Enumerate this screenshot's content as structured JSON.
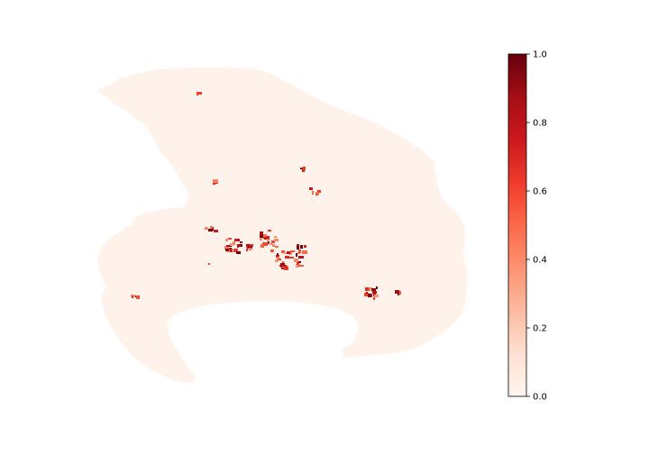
{
  "chart_data": {
    "type": "heatmap",
    "title": "",
    "xlabel": "",
    "ylabel": "",
    "axes_visible": false,
    "colormap": "Reds",
    "colormap_stops": [
      "#fff5f0",
      "#fee0d2",
      "#fcbba1",
      "#fc9272",
      "#fb6a4a",
      "#ef3b2c",
      "#cb181d",
      "#a50f15",
      "#67000d"
    ],
    "background_value": 0.02,
    "colorbar": {
      "range": [
        0,
        1
      ],
      "ticks": [
        {
          "value": 0.0,
          "label": "0.0"
        },
        {
          "value": 0.2,
          "label": "0.2"
        },
        {
          "value": 0.4,
          "label": "0.4"
        },
        {
          "value": 0.6,
          "label": "0.6"
        },
        {
          "value": 0.8,
          "label": "0.8"
        },
        {
          "value": 1.0,
          "label": "1.0"
        }
      ]
    }
  }
}
